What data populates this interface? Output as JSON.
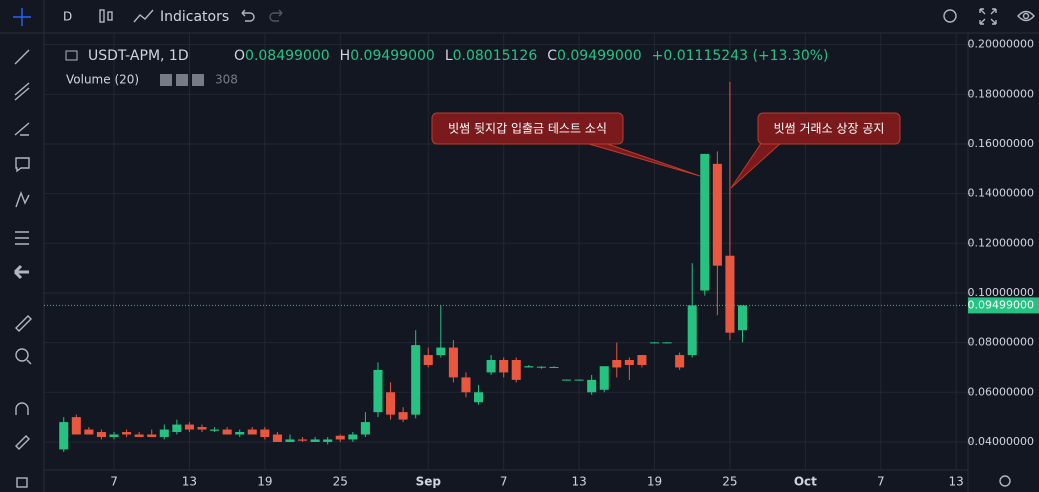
{
  "toolbar": {
    "interval": "D",
    "indicators": "Indicators"
  },
  "chart_data": {
    "type": "candlestick",
    "symbol": "USDT-APM, 1D",
    "header": {
      "o_label": "O",
      "o": "0.08499000",
      "h_label": "H",
      "h": "0.09499000",
      "l_label": "L",
      "l": "0.08015126",
      "c_label": "C",
      "c": "0.09499000",
      "change": "+0.01115243 (+13.30%)"
    },
    "volume_legend": {
      "name": "Volume (20)",
      "value": "308"
    },
    "up_color": "#26c281",
    "down_color": "#e9573f",
    "x": [
      3,
      4,
      5,
      6,
      7,
      8,
      9,
      10,
      11,
      12,
      13,
      14,
      15,
      16,
      17,
      18,
      19,
      20,
      21,
      22,
      23,
      24,
      25,
      26,
      27,
      28,
      29,
      30,
      31,
      32,
      33,
      34,
      35,
      36,
      37,
      38,
      39,
      40,
      41,
      42,
      43,
      44,
      45,
      46,
      47,
      48,
      49,
      50,
      51,
      52,
      53,
      54,
      55,
      56,
      57
    ],
    "open": [
      0.037,
      0.05,
      0.045,
      0.044,
      0.042,
      0.044,
      0.043,
      0.043,
      0.042,
      0.044,
      0.047,
      0.046,
      0.0445,
      0.045,
      0.043,
      0.045,
      0.045,
      0.043,
      0.04,
      0.041,
      0.04,
      0.04,
      0.0425,
      0.041,
      0.043,
      0.052,
      0.06,
      0.052,
      0.051,
      0.075,
      0.075,
      0.078,
      0.066,
      0.056,
      0.068,
      0.073,
      0.073,
      0.07,
      0.07,
      0.07,
      0.065,
      0.065,
      0.06,
      0.061,
      0.073,
      0.073,
      0.075,
      0.08,
      0.08,
      0.075,
      0.075,
      0.101,
      0.152,
      0.115,
      0.08499
    ],
    "high": [
      0.05,
      0.051,
      0.046,
      0.045,
      0.044,
      0.045,
      0.044,
      0.045,
      0.047,
      0.049,
      0.048,
      0.047,
      0.046,
      0.046,
      0.045,
      0.046,
      0.046,
      0.044,
      0.043,
      0.042,
      0.042,
      0.042,
      0.043,
      0.044,
      0.052,
      0.072,
      0.064,
      0.054,
      0.085,
      0.078,
      0.095,
      0.081,
      0.068,
      0.063,
      0.075,
      0.074,
      0.074,
      0.071,
      0.0705,
      0.0705,
      0.0652,
      0.0652,
      0.067,
      0.07,
      0.08,
      0.074,
      0.075,
      0.0802,
      0.0802,
      0.076,
      0.112,
      0.156,
      0.157,
      0.185,
      0.09499
    ],
    "low": [
      0.036,
      0.043,
      0.043,
      0.041,
      0.041,
      0.042,
      0.042,
      0.042,
      0.041,
      0.043,
      0.044,
      0.044,
      0.044,
      0.043,
      0.042,
      0.043,
      0.041,
      0.04,
      0.04,
      0.04,
      0.04,
      0.039,
      0.04,
      0.04,
      0.042,
      0.05,
      0.049,
      0.048,
      0.0495,
      0.07,
      0.074,
      0.064,
      0.058,
      0.055,
      0.067,
      0.066,
      0.064,
      0.07,
      0.0695,
      0.07,
      0.0648,
      0.0648,
      0.059,
      0.06,
      0.066,
      0.065,
      0.07,
      0.0798,
      0.0798,
      0.069,
      0.074,
      0.099,
      0.091,
      0.081,
      0.08015126
    ],
    "close": [
      0.048,
      0.043,
      0.043,
      0.042,
      0.043,
      0.043,
      0.042,
      0.042,
      0.045,
      0.047,
      0.045,
      0.045,
      0.045,
      0.043,
      0.044,
      0.043,
      0.042,
      0.04,
      0.041,
      0.0405,
      0.041,
      0.041,
      0.041,
      0.043,
      0.048,
      0.069,
      0.051,
      0.049,
      0.079,
      0.071,
      0.078,
      0.066,
      0.06,
      0.06,
      0.073,
      0.068,
      0.065,
      0.0705,
      0.0703,
      0.0702,
      0.0651,
      0.0651,
      0.065,
      0.0705,
      0.07,
      0.071,
      0.071,
      0.0801,
      0.0801,
      0.07,
      0.095,
      0.156,
      0.111,
      0.084,
      0.09499
    ],
    "xlim": [
      1.43,
      74.94
    ],
    "xticks": [
      7,
      13,
      19,
      25,
      {
        "value": 32,
        "label": "Sep"
      },
      {
        "value": 38,
        "label": "7"
      },
      {
        "value": 44,
        "label": "13"
      },
      {
        "value": 50,
        "label": "19"
      },
      {
        "value": 56,
        "label": "25"
      },
      {
        "value": 62,
        "label": "Oct"
      },
      {
        "value": 68,
        "label": "7"
      },
      {
        "value": 74,
        "label": "13"
      }
    ],
    "ylim": [
      0.0287,
      0.2047
    ],
    "yticks": [
      {
        "value": 0.04,
        "label": "0.04000000"
      },
      {
        "value": 0.06,
        "label": "0.06000000"
      },
      {
        "value": 0.08,
        "label": "0.08000000"
      },
      {
        "value": 0.1,
        "label": "0.10000000"
      },
      {
        "value": 0.12,
        "label": "0.12000000"
      },
      {
        "value": 0.14,
        "label": "0.14000000"
      },
      {
        "value": 0.16,
        "label": "0.16000000"
      },
      {
        "value": 0.18,
        "label": "0.18000000"
      },
      {
        "value": 0.2,
        "label": "0.20000000"
      }
    ],
    "current_price": {
      "value": 0.09499,
      "label": "0.09499000"
    },
    "grid": true,
    "annotations": [
      "빗썸 뒷지갑 입출금 테스트 소식",
      "빗썸 거래소 상장 공지"
    ]
  }
}
